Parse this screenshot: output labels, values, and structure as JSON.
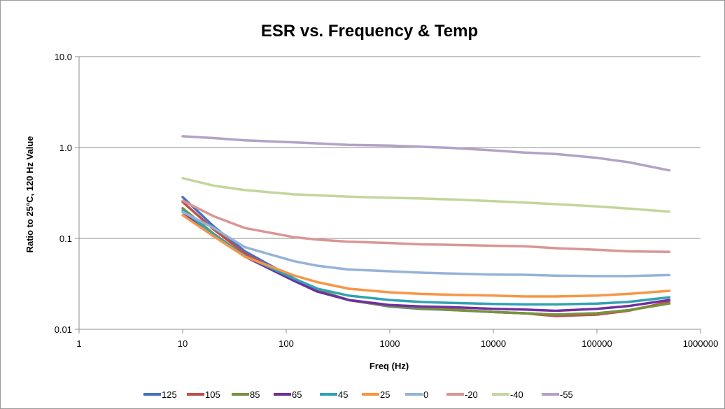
{
  "chart_data": {
    "type": "line",
    "title": "ESR vs. Frequency & Temp",
    "xlabel": "Freq (Hz)",
    "ylabel": "Ratio to 25°C, 120 Hz Value",
    "xscale": "log",
    "yscale": "log",
    "xlim": [
      1,
      1000000
    ],
    "ylim": [
      0.01,
      10
    ],
    "x_ticks": [
      "1",
      "10",
      "100",
      "1000",
      "10000",
      "100000",
      "1000000"
    ],
    "y_ticks": [
      "0.01",
      "0.1",
      "1.0",
      "10.0"
    ],
    "grid": "horizontal major",
    "legend_position": "bottom",
    "x": [
      10,
      20,
      40,
      120,
      200,
      400,
      1000,
      2000,
      4000,
      10000,
      20000,
      40000,
      100000,
      200000,
      500000
    ],
    "series": [
      {
        "name": "125",
        "color": "#4472C4",
        "values": [
          0.285,
          0.135,
          0.072,
          0.036,
          0.027,
          0.021,
          0.0178,
          0.0168,
          0.0163,
          0.0155,
          0.015,
          0.0145,
          0.015,
          0.0162,
          0.0195
        ]
      },
      {
        "name": "105",
        "color": "#C0504D",
        "values": [
          0.252,
          0.125,
          0.068,
          0.035,
          0.027,
          0.021,
          0.018,
          0.017,
          0.0165,
          0.0155,
          0.015,
          0.014,
          0.0145,
          0.016,
          0.02
        ]
      },
      {
        "name": "85",
        "color": "#77933C",
        "values": [
          0.215,
          0.112,
          0.064,
          0.035,
          0.027,
          0.021,
          0.018,
          0.017,
          0.0163,
          0.0155,
          0.015,
          0.0145,
          0.015,
          0.0162,
          0.0192
        ]
      },
      {
        "name": "65",
        "color": "#7030A0",
        "values": [
          0.195,
          0.11,
          0.063,
          0.034,
          0.026,
          0.021,
          0.0185,
          0.0178,
          0.0175,
          0.0168,
          0.0165,
          0.016,
          0.0168,
          0.018,
          0.021
        ]
      },
      {
        "name": "45",
        "color": "#31A2B3",
        "values": [
          0.205,
          0.11,
          0.064,
          0.036,
          0.028,
          0.0235,
          0.021,
          0.02,
          0.0195,
          0.019,
          0.0188,
          0.0188,
          0.0192,
          0.02,
          0.0225
        ]
      },
      {
        "name": "25",
        "color": "#F79646",
        "values": [
          0.18,
          0.105,
          0.063,
          0.039,
          0.033,
          0.028,
          0.0255,
          0.0245,
          0.024,
          0.0235,
          0.023,
          0.023,
          0.0235,
          0.0245,
          0.0265
        ]
      },
      {
        "name": "0",
        "color": "#95B3D7",
        "values": [
          0.195,
          0.13,
          0.08,
          0.056,
          0.05,
          0.0455,
          0.0435,
          0.042,
          0.041,
          0.04,
          0.0398,
          0.039,
          0.0385,
          0.0385,
          0.0395
        ]
      },
      {
        "name": "-20",
        "color": "#DA9694",
        "values": [
          0.26,
          0.175,
          0.13,
          0.103,
          0.097,
          0.092,
          0.089,
          0.086,
          0.085,
          0.083,
          0.082,
          0.078,
          0.075,
          0.072,
          0.071
        ]
      },
      {
        "name": "-40",
        "color": "#C3D69B",
        "values": [
          0.46,
          0.38,
          0.34,
          0.305,
          0.298,
          0.288,
          0.28,
          0.275,
          0.268,
          0.257,
          0.248,
          0.238,
          0.225,
          0.213,
          0.197
        ]
      },
      {
        "name": "-55",
        "color": "#B3A2C7",
        "values": [
          1.33,
          1.27,
          1.2,
          1.14,
          1.11,
          1.07,
          1.05,
          1.02,
          0.99,
          0.93,
          0.88,
          0.85,
          0.77,
          0.69,
          0.56
        ]
      }
    ]
  }
}
